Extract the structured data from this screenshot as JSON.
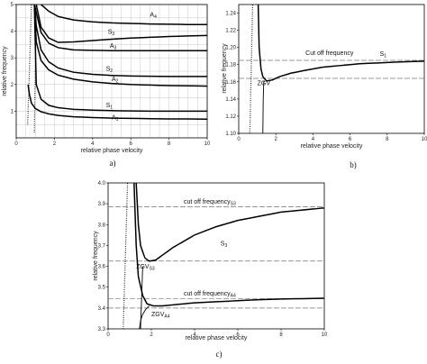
{
  "chart_data": [
    {
      "panel": "a)",
      "type": "line",
      "xlabel": "relative phase velocity",
      "ylabel": "relative frequency",
      "xlim": [
        0,
        10
      ],
      "ylim": [
        0,
        5
      ],
      "xticks": [
        0,
        2,
        4,
        6,
        8,
        10
      ],
      "yticks": [
        1,
        2,
        3,
        4,
        5
      ],
      "grid": true,
      "series": [
        {
          "name": "A1",
          "label": "A",
          "sub": "1",
          "x": [
            0.62,
            0.7,
            0.8,
            1.0,
            1.3,
            1.7,
            2.2,
            3,
            4,
            5,
            6,
            7,
            8,
            9,
            10
          ],
          "y": [
            2.0,
            1.6,
            1.3,
            1.1,
            0.98,
            0.9,
            0.84,
            0.79,
            0.76,
            0.74,
            0.73,
            0.72,
            0.71,
            0.71,
            0.7
          ]
        },
        {
          "name": "S1",
          "label": "S",
          "sub": "1",
          "x": [
            0.95,
            1.05,
            1.3,
            1.7,
            2.2,
            3,
            4,
            5,
            6,
            7,
            8,
            9,
            10
          ],
          "y": [
            5.0,
            2.0,
            1.45,
            1.22,
            1.13,
            1.07,
            1.04,
            1.02,
            1.01,
            1.0,
            1.0,
            1.0,
            1.0
          ]
        },
        {
          "name": "A2",
          "label": "A",
          "sub": "2",
          "x": [
            0.95,
            1.05,
            1.3,
            1.7,
            2.2,
            3,
            4,
            5,
            6,
            7,
            8,
            9,
            10
          ],
          "y": [
            5.0,
            3.6,
            2.9,
            2.55,
            2.35,
            2.2,
            2.1,
            2.04,
            2.0,
            1.98,
            1.96,
            1.95,
            1.94
          ]
        },
        {
          "name": "S2",
          "label": "S",
          "sub": "2",
          "x": [
            0.95,
            1.05,
            1.3,
            1.7,
            2.2,
            3,
            4,
            5,
            6,
            7,
            8,
            9,
            10
          ],
          "y": [
            5.0,
            4.2,
            3.3,
            2.85,
            2.62,
            2.46,
            2.38,
            2.34,
            2.32,
            2.31,
            2.3,
            2.3,
            2.3
          ]
        },
        {
          "name": "A3",
          "label": "A",
          "sub": "3",
          "x": [
            0.95,
            1.05,
            1.3,
            1.7,
            2.2,
            3,
            4,
            5,
            6,
            7,
            8,
            9,
            10
          ],
          "y": [
            5.0,
            4.7,
            3.95,
            3.55,
            3.38,
            3.3,
            3.28,
            3.27,
            3.27,
            3.27,
            3.27,
            3.27,
            3.27
          ]
        },
        {
          "name": "S3",
          "label": "S",
          "sub": "3",
          "x": [
            1.05,
            1.3,
            1.7,
            2.2,
            3,
            4,
            5,
            6,
            7,
            8,
            9,
            10
          ],
          "y": [
            5.0,
            4.15,
            3.75,
            3.58,
            3.6,
            3.65,
            3.7,
            3.74,
            3.77,
            3.8,
            3.82,
            3.84
          ]
        },
        {
          "name": "A4",
          "label": "A",
          "sub": "4",
          "x": [
            1.3,
            1.7,
            2.2,
            3,
            4,
            5,
            6,
            7,
            8,
            9,
            10
          ],
          "y": [
            5.0,
            4.75,
            4.55,
            4.42,
            4.35,
            4.31,
            4.29,
            4.27,
            4.26,
            4.25,
            4.25
          ]
        },
        {
          "name": "rays",
          "x": [
            0.6,
            0.8
          ],
          "y": [
            0.5,
            5.0
          ]
        },
        {
          "name": "rays2",
          "x": [
            0.95,
            1.05
          ],
          "y": [
            0.2,
            5.0
          ]
        }
      ],
      "labels": [
        {
          "series": "A4",
          "at": [
            7.0,
            4.55
          ]
        },
        {
          "series": "S3",
          "at": [
            4.8,
            3.9
          ]
        },
        {
          "series": "A3",
          "at": [
            4.9,
            3.38
          ]
        },
        {
          "series": "S2",
          "at": [
            4.7,
            2.52
          ]
        },
        {
          "series": "A2",
          "at": [
            5.0,
            2.13
          ]
        },
        {
          "series": "S1",
          "at": [
            4.7,
            1.15
          ]
        },
        {
          "series": "A1",
          "at": [
            5.0,
            0.7
          ]
        }
      ]
    },
    {
      "panel": "b)",
      "type": "line",
      "xlabel": "relative phase velocity",
      "ylabel": "relative frequency",
      "xlim": [
        0,
        10
      ],
      "ylim": [
        1.1,
        1.25
      ],
      "xticks": [
        0,
        2,
        4,
        6,
        8,
        10
      ],
      "yticks": [
        1.1,
        1.12,
        1.14,
        1.16,
        1.18,
        1.2,
        1.22,
        1.24
      ],
      "grid": false,
      "hlines": [
        1.185,
        1.164
      ],
      "annotation": "Cut off frequency",
      "annotation_at": [
        3.6,
        1.191
      ],
      "zgv_label": "ZGV",
      "zgv_at": [
        1.0,
        1.156
      ],
      "series_label": {
        "label": "S",
        "sub": "1",
        "at": [
          7.6,
          1.19
        ]
      },
      "series": [
        {
          "name": "S1",
          "x": [
            1.05,
            1.1,
            1.2,
            1.3,
            1.5,
            1.8,
            2.2,
            2.8,
            3.5,
            4.5,
            5.5,
            6.5,
            7.5,
            8.5,
            10
          ],
          "y": [
            1.25,
            1.2,
            1.175,
            1.166,
            1.161,
            1.162,
            1.166,
            1.17,
            1.173,
            1.177,
            1.179,
            1.181,
            1.182,
            1.183,
            1.184
          ]
        },
        {
          "name": "S1b",
          "x": [
            1.3,
            1.32,
            1.35,
            1.4
          ],
          "y": [
            1.1,
            1.14,
            1.16,
            1.161
          ]
        },
        {
          "name": "rays",
          "x": [
            0.6,
            0.75
          ],
          "y": [
            1.1,
            1.25
          ]
        }
      ]
    },
    {
      "panel": "c)",
      "type": "line",
      "xlabel": "relative phase velocity",
      "ylabel": "relative frequency",
      "xlim": [
        0,
        10
      ],
      "ylim": [
        3.3,
        4.0
      ],
      "xticks": [
        0,
        2,
        4,
        6,
        8,
        10
      ],
      "yticks": [
        3.3,
        3.4,
        3.5,
        3.6,
        3.7,
        3.8,
        3.9,
        4.0
      ],
      "grid": false,
      "hlines": [
        3.885,
        3.625,
        3.445,
        3.4
      ],
      "annotations": [
        {
          "text": "cut off frequency",
          "sub": "S3",
          "at": [
            3.5,
            3.9
          ]
        },
        {
          "text": "cut off frequency",
          "sub": "A4",
          "at": [
            3.5,
            3.46
          ]
        }
      ],
      "zgv_labels": [
        {
          "text": "ZGV",
          "sub": "S3",
          "at": [
            1.3,
            3.59
          ]
        },
        {
          "text": "ZGV",
          "sub": "A4",
          "at": [
            2.0,
            3.36
          ]
        }
      ],
      "series_label": {
        "label": "S",
        "sub": "3",
        "at": [
          5.2,
          3.7
        ]
      },
      "series": [
        {
          "name": "S3",
          "x": [
            1.3,
            1.4,
            1.5,
            1.7,
            1.9,
            2.2,
            2.6,
            3,
            3.5,
            4,
            5,
            6,
            7,
            8,
            9,
            10
          ],
          "y": [
            4.0,
            3.8,
            3.7,
            3.64,
            3.625,
            3.63,
            3.66,
            3.69,
            3.72,
            3.75,
            3.79,
            3.82,
            3.84,
            3.86,
            3.87,
            3.88
          ]
        },
        {
          "name": "A4",
          "x": [
            1.2,
            1.3,
            1.4,
            1.6,
            1.8,
            2.1,
            2.5,
            3,
            3.5,
            4,
            5,
            6,
            7,
            8,
            9,
            10
          ],
          "y": [
            4.0,
            3.7,
            3.55,
            3.46,
            3.42,
            3.41,
            3.41,
            3.415,
            3.42,
            3.425,
            3.43,
            3.435,
            3.44,
            3.443,
            3.445,
            3.447
          ]
        },
        {
          "name": "A4b",
          "x": [
            1.45,
            1.5,
            1.6,
            1.75,
            1.9
          ],
          "y": [
            3.3,
            3.34,
            3.37,
            3.395,
            3.41
          ]
        },
        {
          "name": "S3b",
          "x": [
            1.5,
            1.55,
            1.6
          ],
          "y": [
            3.3,
            3.45,
            3.6
          ]
        },
        {
          "name": "rays",
          "x": [
            0.7,
            0.9
          ],
          "y": [
            3.3,
            4.0
          ]
        }
      ]
    }
  ]
}
